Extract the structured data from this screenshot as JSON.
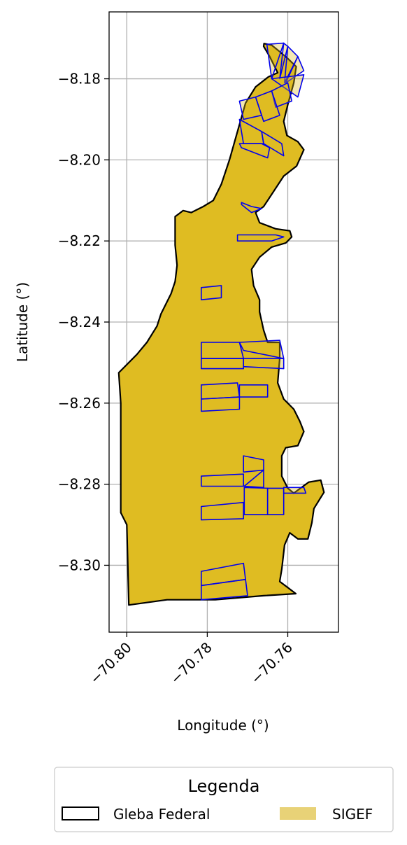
{
  "chart_data": {
    "type": "map",
    "xlabel": "Longitude (°)",
    "ylabel": "Latitude (°)",
    "xlim": [
      -70.8044,
      -70.7474
    ],
    "ylim": [
      -8.3165,
      -8.1635
    ],
    "x_ticks": [
      -70.8,
      -70.78,
      -70.76
    ],
    "x_tick_labels": [
      "−70.80",
      "−70.78",
      "−70.76"
    ],
    "y_ticks": [
      -8.18,
      -8.2,
      -8.22,
      -8.24,
      -8.26,
      -8.28,
      -8.3
    ],
    "y_tick_labels": [
      "−8.18",
      "−8.20",
      "−8.22",
      "−8.24",
      "−8.26",
      "−8.28",
      "−8.30"
    ],
    "grid": true,
    "colors": {
      "gleba_edge": "#000000",
      "sigef_fill": "#dfbc22",
      "sigef_edge": "#0000ee",
      "legend_sigef": "#e8d277",
      "grid": "#b0b0b0"
    },
    "gleba_federal": [
      [
        -70.7659,
        -8.1713
      ],
      [
        -70.764,
        -8.1717
      ],
      [
        -70.762,
        -8.1733
      ],
      [
        -70.76,
        -8.175
      ],
      [
        -70.7579,
        -8.177
      ],
      [
        -70.7585,
        -8.181
      ],
      [
        -70.7599,
        -8.186
      ],
      [
        -70.761,
        -8.1905
      ],
      [
        -70.7602,
        -8.194
      ],
      [
        -70.7575,
        -8.1955
      ],
      [
        -70.756,
        -8.1975
      ],
      [
        -70.7578,
        -8.2015
      ],
      [
        -70.761,
        -8.204
      ],
      [
        -70.764,
        -8.2085
      ],
      [
        -70.766,
        -8.2115
      ],
      [
        -70.768,
        -8.213
      ],
      [
        -70.767,
        -8.2155
      ],
      [
        -70.763,
        -8.217
      ],
      [
        -70.7595,
        -8.2175
      ],
      [
        -70.759,
        -8.219
      ],
      [
        -70.7605,
        -8.2205
      ],
      [
        -70.764,
        -8.2215
      ],
      [
        -70.767,
        -8.224
      ],
      [
        -70.769,
        -8.227
      ],
      [
        -70.7685,
        -8.231
      ],
      [
        -70.767,
        -8.2345
      ],
      [
        -70.767,
        -8.2375
      ],
      [
        -70.766,
        -8.242
      ],
      [
        -70.765,
        -8.245
      ],
      [
        -70.762,
        -8.245
      ],
      [
        -70.762,
        -8.249
      ],
      [
        -70.7625,
        -8.255
      ],
      [
        -70.761,
        -8.259
      ],
      [
        -70.7585,
        -8.2615
      ],
      [
        -70.757,
        -8.2645
      ],
      [
        -70.756,
        -8.267
      ],
      [
        -70.7575,
        -8.2705
      ],
      [
        -70.7605,
        -8.271
      ],
      [
        -70.7615,
        -8.273
      ],
      [
        -70.7615,
        -8.278
      ],
      [
        -70.76,
        -8.281
      ],
      [
        -70.7585,
        -8.2822
      ],
      [
        -70.7548,
        -8.2795
      ],
      [
        -70.7518,
        -8.279
      ],
      [
        -70.751,
        -8.282
      ],
      [
        -70.7535,
        -8.286
      ],
      [
        -70.754,
        -8.2895
      ],
      [
        -70.755,
        -8.2935
      ],
      [
        -70.7575,
        -8.2935
      ],
      [
        -70.7595,
        -8.292
      ],
      [
        -70.7608,
        -8.295
      ],
      [
        -70.7615,
        -8.301
      ],
      [
        -70.762,
        -8.304
      ],
      [
        -70.76,
        -8.3055
      ],
      [
        -70.758,
        -8.307
      ],
      [
        -70.766,
        -8.3075
      ],
      [
        -70.778,
        -8.3085
      ],
      [
        -70.79,
        -8.3085
      ],
      [
        -70.7995,
        -8.3098
      ],
      [
        -70.8,
        -8.29
      ],
      [
        -70.8015,
        -8.287
      ],
      [
        -70.8015,
        -8.26
      ],
      [
        -70.802,
        -8.2525
      ],
      [
        -70.8,
        -8.2505
      ],
      [
        -70.7975,
        -8.248
      ],
      [
        -70.795,
        -8.245
      ],
      [
        -70.7925,
        -8.241
      ],
      [
        -70.7915,
        -8.238
      ],
      [
        -70.789,
        -8.233
      ],
      [
        -70.788,
        -8.23
      ],
      [
        -70.7875,
        -8.226
      ],
      [
        -70.788,
        -8.221
      ],
      [
        -70.788,
        -8.214
      ],
      [
        -70.786,
        -8.2125
      ],
      [
        -70.784,
        -8.213
      ],
      [
        -70.781,
        -8.2115
      ],
      [
        -70.7785,
        -8.21
      ],
      [
        -70.7765,
        -8.206
      ],
      [
        -70.7745,
        -8.2
      ],
      [
        -70.7725,
        -8.193
      ],
      [
        -70.7705,
        -8.186
      ],
      [
        -70.768,
        -8.182
      ],
      [
        -70.7648,
        -8.1795
      ],
      [
        -70.7625,
        -8.1785
      ],
      [
        -70.7645,
        -8.1745
      ],
      [
        -70.766,
        -8.172
      ]
    ],
    "sigef_parcels": [
      [
        [
          -70.7652,
          -8.1715
        ],
        [
          -70.761,
          -8.1712
        ],
        [
          -70.764,
          -8.18
        ]
      ],
      [
        [
          -70.761,
          -8.1712
        ],
        [
          -70.76,
          -8.172
        ],
        [
          -70.762,
          -8.18
        ]
      ],
      [
        [
          -70.76,
          -8.172
        ],
        [
          -70.7575,
          -8.1745
        ],
        [
          -70.7608,
          -8.181
        ]
      ],
      [
        [
          -70.7575,
          -8.1745
        ],
        [
          -70.756,
          -8.178
        ],
        [
          -70.7605,
          -8.181
        ]
      ],
      [
        [
          -70.764,
          -8.18
        ],
        [
          -70.7575,
          -8.1845
        ],
        [
          -70.756,
          -8.179
        ]
      ],
      [
        [
          -70.76,
          -8.181
        ],
        [
          -70.764,
          -8.183
        ],
        [
          -70.763,
          -8.187
        ],
        [
          -70.759,
          -8.1855
        ]
      ],
      [
        [
          -70.764,
          -8.183
        ],
        [
          -70.768,
          -8.1845
        ],
        [
          -70.766,
          -8.1905
        ],
        [
          -70.762,
          -8.189
        ]
      ],
      [
        [
          -70.768,
          -8.1845
        ],
        [
          -70.772,
          -8.1855
        ],
        [
          -70.771,
          -8.19
        ],
        [
          -70.7665,
          -8.189
        ]
      ],
      [
        [
          -70.772,
          -8.19
        ],
        [
          -70.7665,
          -8.193
        ],
        [
          -70.766,
          -8.196
        ],
        [
          -70.771,
          -8.196
        ]
      ],
      [
        [
          -70.772,
          -8.196
        ],
        [
          -70.7665,
          -8.196
        ],
        [
          -70.7645,
          -8.197
        ],
        [
          -70.765,
          -8.1995
        ],
        [
          -70.7715,
          -8.197
        ]
      ],
      [
        [
          -70.7665,
          -8.193
        ],
        [
          -70.7615,
          -8.196
        ],
        [
          -70.761,
          -8.199
        ],
        [
          -70.766,
          -8.196
        ]
      ],
      [
        [
          -70.7715,
          -8.2105
        ],
        [
          -70.769,
          -8.2115
        ],
        [
          -70.7665,
          -8.212
        ],
        [
          -70.769,
          -8.213
        ],
        [
          -70.7715,
          -8.211
        ]
      ],
      [
        [
          -70.7725,
          -8.2185
        ],
        [
          -70.7665,
          -8.2185
        ],
        [
          -70.763,
          -8.2185
        ],
        [
          -70.761,
          -8.219
        ],
        [
          -70.764,
          -8.22
        ],
        [
          -70.7725,
          -8.22
        ]
      ],
      [
        [
          -70.7815,
          -8.2315
        ],
        [
          -70.7765,
          -8.231
        ],
        [
          -70.7765,
          -8.234
        ],
        [
          -70.7815,
          -8.2345
        ]
      ],
      [
        [
          -70.7815,
          -8.245
        ],
        [
          -70.772,
          -8.245
        ],
        [
          -70.771,
          -8.249
        ],
        [
          -70.7815,
          -8.249
        ]
      ],
      [
        [
          -70.772,
          -8.245
        ],
        [
          -70.762,
          -8.2445
        ],
        [
          -70.761,
          -8.249
        ],
        [
          -70.771,
          -8.247
        ]
      ],
      [
        [
          -70.771,
          -8.249
        ],
        [
          -70.761,
          -8.249
        ],
        [
          -70.761,
          -8.2515
        ],
        [
          -70.771,
          -8.251
        ]
      ],
      [
        [
          -70.7815,
          -8.249
        ],
        [
          -70.771,
          -8.249
        ],
        [
          -70.771,
          -8.2515
        ],
        [
          -70.7815,
          -8.2515
        ]
      ],
      [
        [
          -70.7815,
          -8.2555
        ],
        [
          -70.7725,
          -8.255
        ],
        [
          -70.772,
          -8.2585
        ],
        [
          -70.7815,
          -8.259
        ]
      ],
      [
        [
          -70.772,
          -8.2555
        ],
        [
          -70.765,
          -8.2555
        ],
        [
          -70.765,
          -8.2585
        ],
        [
          -70.772,
          -8.2585
        ]
      ],
      [
        [
          -70.7815,
          -8.259
        ],
        [
          -70.772,
          -8.2585
        ],
        [
          -70.772,
          -8.2615
        ],
        [
          -70.7815,
          -8.262
        ]
      ],
      [
        [
          -70.771,
          -8.273
        ],
        [
          -70.766,
          -8.274
        ],
        [
          -70.766,
          -8.2765
        ],
        [
          -70.771,
          -8.277
        ]
      ],
      [
        [
          -70.7815,
          -8.278
        ],
        [
          -70.771,
          -8.2775
        ],
        [
          -70.771,
          -8.2805
        ],
        [
          -70.7815,
          -8.2805
        ]
      ],
      [
        [
          -70.766,
          -8.2765
        ],
        [
          -70.766,
          -8.2808
        ],
        [
          -70.7708,
          -8.2805
        ]
      ],
      [
        [
          -70.7815,
          -8.2855
        ],
        [
          -70.771,
          -8.2845
        ],
        [
          -70.771,
          -8.2885
        ],
        [
          -70.7815,
          -8.2888
        ]
      ],
      [
        [
          -70.7708,
          -8.2808
        ],
        [
          -70.765,
          -8.281
        ],
        [
          -70.765,
          -8.2875
        ],
        [
          -70.7708,
          -8.2875
        ]
      ],
      [
        [
          -70.765,
          -8.281
        ],
        [
          -70.761,
          -8.281
        ],
        [
          -70.761,
          -8.2875
        ],
        [
          -70.765,
          -8.2875
        ]
      ],
      [
        [
          -70.761,
          -8.2808
        ],
        [
          -70.756,
          -8.2808
        ],
        [
          -70.7555,
          -8.2822
        ],
        [
          -70.761,
          -8.2822
        ]
      ],
      [
        [
          -70.7815,
          -8.3015
        ],
        [
          -70.771,
          -8.2995
        ],
        [
          -70.7705,
          -8.3035
        ],
        [
          -70.7815,
          -8.305
        ]
      ],
      [
        [
          -70.7815,
          -8.305
        ],
        [
          -70.7705,
          -8.3035
        ],
        [
          -70.77,
          -8.3075
        ],
        [
          -70.7815,
          -8.3085
        ]
      ]
    ]
  },
  "legend": {
    "title": "Legenda",
    "items": [
      {
        "label": "Gleba Federal",
        "swatch": "outline"
      },
      {
        "label": "SIGEF",
        "swatch": "fill"
      }
    ]
  }
}
